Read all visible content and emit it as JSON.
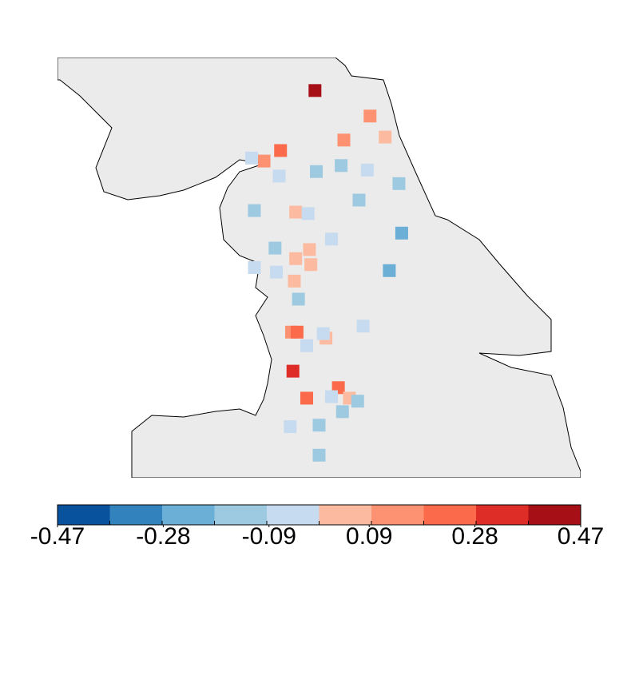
{
  "chart_data": {
    "type": "map",
    "lonlim": [
      -3.6,
      0.2
    ],
    "latlim": [
      53.0,
      55.8
    ],
    "lon": [
      -1.73,
      -1.33,
      -1.52,
      -1.22,
      -1.98,
      -2.1,
      -2.19,
      -1.99,
      -1.72,
      -1.54,
      -1.35,
      -1.12,
      -1.41,
      -2.17,
      -1.87,
      -1.78,
      -1.1,
      -1.61,
      -2.02,
      -1.77,
      -1.87,
      -1.76,
      -2.17,
      -2.01,
      -1.19,
      -1.88,
      -1.85,
      -1.38,
      -1.9,
      -1.86,
      -1.65,
      -1.67,
      -1.79,
      -1.89,
      -1.56,
      -1.79,
      -1.61,
      -1.48,
      -1.42,
      -1.53,
      -1.91,
      -1.7,
      -1.7
    ],
    "lat": [
      55.58,
      55.41,
      55.25,
      55.27,
      55.18,
      55.11,
      55.13,
      55.01,
      55.04,
      55.08,
      55.05,
      54.96,
      54.85,
      54.78,
      54.77,
      54.76,
      54.63,
      54.59,
      54.53,
      54.52,
      54.46,
      54.42,
      54.4,
      54.37,
      54.38,
      54.31,
      54.19,
      54.01,
      53.97,
      53.97,
      53.93,
      53.96,
      53.88,
      53.71,
      53.6,
      53.53,
      53.54,
      53.53,
      53.51,
      53.44,
      53.34,
      53.35,
      53.15
    ],
    "values": [
      0.42,
      0.14,
      0.14,
      0.05,
      0.24,
      0.14,
      -0.05,
      -0.05,
      -0.14,
      -0.14,
      -0.05,
      -0.14,
      -0.14,
      -0.14,
      0.05,
      -0.05,
      -0.24,
      -0.05,
      -0.14,
      0.05,
      0.05,
      0.05,
      -0.05,
      -0.05,
      -0.24,
      0.05,
      -0.14,
      -0.05,
      0.14,
      0.24,
      0.05,
      -0.05,
      -0.05,
      0.33,
      0.24,
      0.24,
      -0.05,
      0.05,
      -0.14,
      -0.14,
      -0.05,
      -0.14,
      -0.14
    ],
    "colors": [
      "#08519c",
      "#3182bd",
      "#6baed6",
      "#9ecae1",
      "#c6dbef",
      "#fcbba1",
      "#fc9272",
      "#fb6a4a",
      "#de2d26",
      "#a50f15"
    ],
    "color_range": [
      -0.47,
      0.47
    ],
    "colorbar_ticks": [
      -0.47,
      -0.28,
      -0.09,
      0.09,
      0.28,
      0.47
    ]
  }
}
